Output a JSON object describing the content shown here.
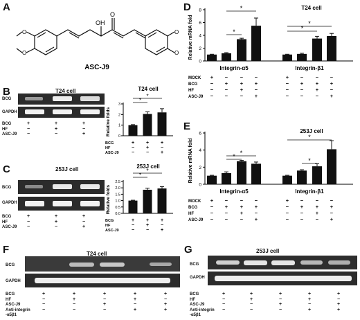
{
  "panels": {
    "A": {
      "letter": "A",
      "compound": "ASC-J9",
      "oh_label": "OH",
      "o_label": "O"
    },
    "B": {
      "letter": "B",
      "cell": "T24 cell"
    },
    "C": {
      "letter": "C",
      "cell": "253J cell"
    },
    "D": {
      "letter": "D",
      "cell": "T24 cell"
    },
    "E": {
      "letter": "E",
      "cell": "253J cell"
    },
    "F": {
      "letter": "F",
      "cell": "T24 cell"
    },
    "G": {
      "letter": "G",
      "cell": "253J cell"
    }
  },
  "gel_rows": {
    "bcg": "BCG",
    "gapdh": "GAPDH"
  },
  "cond_labels": {
    "bcg": "BCG",
    "hf": "HF",
    "ascj9": "ASC-J9",
    "mock": "MOCK",
    "anti1": "Anti-integrin",
    "anti2": "-α5β1"
  },
  "sig": "*",
  "chart_data": [
    {
      "id": "B",
      "type": "bar",
      "title": "T24 cell",
      "ylabel": "Relative folds",
      "ylim": [
        0,
        3
      ],
      "ticks": [
        "0",
        "1",
        "2",
        "3"
      ],
      "categories": [
        "BCG",
        "BCG+HF",
        "BCG+ASC-J9"
      ],
      "values": [
        1.0,
        2.05,
        2.2
      ],
      "errors": [
        0.05,
        0.2,
        0.35
      ],
      "treatments": {
        "BCG": [
          "+",
          "+",
          "+"
        ],
        "HF": [
          "−",
          "+",
          "−"
        ],
        "ASC-J9": [
          "−",
          "−",
          "+"
        ]
      }
    },
    {
      "id": "C",
      "type": "bar",
      "title": "253J cell",
      "ylabel": "Relative folds",
      "ylim": [
        0,
        2.5
      ],
      "ticks": [
        "0.0",
        "0.5",
        "1.0",
        "1.5",
        "2.0",
        "2.5"
      ],
      "categories": [
        "BCG",
        "BCG+HF",
        "BCG+ASC-J9"
      ],
      "values": [
        1.0,
        1.85,
        1.95
      ],
      "errors": [
        0.03,
        0.12,
        0.15
      ],
      "treatments": {
        "BCG": [
          "+",
          "+",
          "+"
        ],
        "HF": [
          "−",
          "+",
          "−"
        ],
        "ASC-J9": [
          "−",
          "−",
          "+"
        ]
      }
    },
    {
      "id": "D",
      "type": "bar",
      "title": "T24 cell",
      "ylabel": "Relative mRNA fold",
      "ylim": [
        0,
        8
      ],
      "ticks": [
        "0",
        "2",
        "4",
        "6",
        "8"
      ],
      "groups": [
        "Integrin-α5",
        "Integrin-β1"
      ],
      "series": [
        {
          "values": [
            1.0,
            1.2,
            3.4,
            5.5
          ],
          "errors": [
            0.05,
            0.1,
            0.15,
            1.2
          ]
        },
        {
          "values": [
            1.0,
            1.1,
            3.5,
            3.9
          ],
          "errors": [
            0.05,
            0.1,
            0.35,
            0.4
          ]
        }
      ],
      "treatments": {
        "MOCK": [
          "+",
          "−",
          "−",
          "−"
        ],
        "BCG": [
          "−",
          "+",
          "+",
          "+"
        ],
        "HF": [
          "−",
          "−",
          "+",
          "−"
        ],
        "ASC-J9": [
          "−",
          "−",
          "−",
          "+"
        ]
      }
    },
    {
      "id": "E",
      "type": "bar",
      "title": "253J cell",
      "ylabel": "Relative mRNA fold",
      "ylim": [
        0,
        6
      ],
      "ticks": [
        "0",
        "2",
        "4",
        "6"
      ],
      "groups": [
        "Integrin-α5",
        "Integrin-β1"
      ],
      "series": [
        {
          "values": [
            1.0,
            1.3,
            2.7,
            2.4
          ],
          "errors": [
            0.05,
            0.15,
            0.1,
            0.2
          ]
        },
        {
          "values": [
            1.0,
            1.6,
            2.1,
            4.1
          ],
          "errors": [
            0.05,
            0.1,
            0.3,
            1.0
          ]
        }
      ],
      "treatments": {
        "MOCK": [
          "+",
          "−",
          "−",
          "−"
        ],
        "BCG": [
          "−",
          "+",
          "+",
          "+"
        ],
        "HF": [
          "−",
          "−",
          "+",
          "−"
        ],
        "ASC-J9": [
          "−",
          "−",
          "−",
          "+"
        ]
      }
    }
  ],
  "gel_treatments_F": {
    "BCG": [
      "+",
      "+",
      "+",
      "+",
      "+"
    ],
    "HF": [
      "−",
      "+",
      "−",
      "+",
      "−"
    ],
    "ASC-J9": [
      "−",
      "−",
      "+",
      "−",
      "+"
    ],
    "Anti": [
      "−",
      "−",
      "−",
      "+",
      "+"
    ]
  },
  "gel_treatments_G": {
    "BCG": [
      "+",
      "+",
      "+",
      "+",
      "+"
    ],
    "HF": [
      "−",
      "+",
      "−",
      "+",
      "−"
    ],
    "ASC-J9": [
      "−",
      "−",
      "+",
      "−",
      "+"
    ],
    "Anti": [
      "−",
      "−",
      "−",
      "+",
      "+"
    ]
  }
}
